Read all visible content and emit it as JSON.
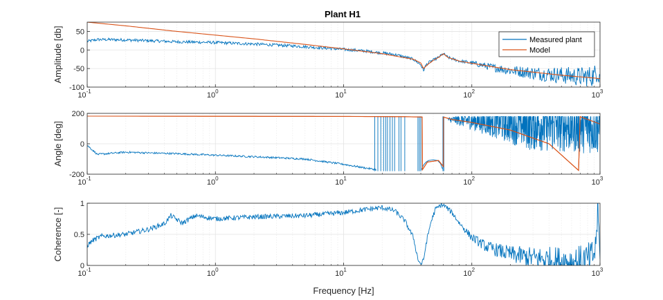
{
  "figure": {
    "title": "Plant H1"
  },
  "colors": {
    "measured": "#0072BD",
    "model": "#D95319",
    "grid": "#e3e3e3",
    "minor_grid": "#ececec",
    "axis": "#262626"
  },
  "chart_data": [
    {
      "type": "line",
      "title": "Plant H1",
      "xlabel": "",
      "ylabel": "Amplitude [db]",
      "xscale": "log",
      "xlim": [
        0.1,
        1000
      ],
      "ylim": [
        -100,
        75
      ],
      "yticks": [
        -100,
        -50,
        0,
        50
      ],
      "xticks": [
        {
          "base": "10",
          "exp": "-1"
        },
        {
          "base": "10",
          "exp": "0"
        },
        {
          "base": "10",
          "exp": "1"
        },
        {
          "base": "10",
          "exp": "2"
        },
        {
          "base": "10",
          "exp": "3"
        }
      ],
      "grid": true,
      "legend": {
        "placement": "top-right",
        "entries": [
          "Measured plant",
          "Model"
        ]
      },
      "series": [
        {
          "name": "Measured plant",
          "color": "#0072BD",
          "noise": 4,
          "x": [
            0.1,
            0.12,
            0.15,
            0.2,
            0.3,
            0.5,
            1,
            2,
            4,
            8,
            15,
            25,
            35,
            40,
            42,
            44,
            47,
            55,
            60,
            65,
            80,
            100,
            150,
            200,
            300,
            500,
            700,
            900,
            950,
            1000
          ],
          "y": [
            23,
            28,
            28,
            27,
            25,
            22,
            20,
            16,
            11,
            4,
            -3,
            -12,
            -25,
            -40,
            -55,
            -40,
            -32,
            -20,
            -10,
            -20,
            -30,
            -35,
            -48,
            -55,
            -62,
            -68,
            -72,
            -70,
            -55,
            -70
          ]
        },
        {
          "name": "Model",
          "color": "#D95319",
          "noise": 0,
          "x": [
            0.1,
            0.2,
            0.5,
            1,
            2,
            5,
            10,
            20,
            35,
            40,
            42,
            45,
            50,
            55,
            60,
            65,
            80,
            100,
            200,
            500,
            1000
          ],
          "y": [
            75,
            65,
            50,
            40,
            30,
            15,
            3,
            -10,
            -25,
            -35,
            -50,
            -40,
            -28,
            -20,
            -10,
            -20,
            -30,
            -36,
            -53,
            -68,
            -77
          ]
        }
      ]
    },
    {
      "type": "line",
      "xlabel": "",
      "ylabel": "Angle [deg]",
      "xscale": "log",
      "xlim": [
        0.1,
        1000
      ],
      "ylim": [
        -200,
        200
      ],
      "yticks": [
        -200,
        0,
        200
      ],
      "xticks": [
        {
          "base": "10",
          "exp": "-1"
        },
        {
          "base": "10",
          "exp": "0"
        },
        {
          "base": "10",
          "exp": "1"
        },
        {
          "base": "10",
          "exp": "2"
        },
        {
          "base": "10",
          "exp": "3"
        }
      ],
      "grid": true,
      "series": [
        {
          "name": "Measured plant",
          "color": "#0072BD",
          "noise": 6,
          "x": [
            0.1,
            0.12,
            0.2,
            0.3,
            0.5,
            1,
            2,
            5,
            10,
            15,
            18
          ],
          "y": [
            -10,
            -70,
            -55,
            -60,
            -65,
            -75,
            -85,
            -100,
            -135,
            -160,
            -170
          ]
        },
        {
          "name": "Measured plant",
          "color": "#0072BD",
          "noise": 0,
          "x": [
            40.5,
            42,
            44,
            46,
            50,
            54,
            57,
            59
          ],
          "y": [
            -170,
            -140,
            -120,
            -110,
            -105,
            -110,
            -130,
            -165
          ]
        },
        {
          "name": "Model",
          "color": "#D95319",
          "noise": 0,
          "x": [
            0.1,
            1,
            10,
            30,
            41,
            41.2,
            45,
            55,
            60,
            60.2,
            70,
            100,
            200,
            400,
            650,
            680,
            700,
            1000
          ],
          "y": [
            182,
            181,
            180,
            178,
            176,
            -170,
            -120,
            -110,
            -150,
            175,
            160,
            140,
            90,
            0,
            -160,
            -175,
            178,
            130
          ]
        }
      ]
    },
    {
      "type": "line",
      "xlabel": "Frequency [Hz]",
      "ylabel": "Coherence [-]",
      "xscale": "log",
      "xlim": [
        0.1,
        1000
      ],
      "ylim": [
        0,
        1
      ],
      "yticks": [
        0,
        0.5,
        1
      ],
      "xticks": [
        {
          "base": "10",
          "exp": "-1"
        },
        {
          "base": "10",
          "exp": "0"
        },
        {
          "base": "10",
          "exp": "1"
        },
        {
          "base": "10",
          "exp": "2"
        },
        {
          "base": "10",
          "exp": "3"
        }
      ],
      "grid": true,
      "series": [
        {
          "name": "Measured plant",
          "color": "#0072BD",
          "noise": 0.04,
          "x": [
            0.1,
            0.11,
            0.13,
            0.2,
            0.3,
            0.4,
            0.45,
            0.55,
            0.7,
            1,
            2,
            5,
            10,
            15,
            20,
            25,
            30,
            35,
            38,
            40,
            42,
            44,
            48,
            52,
            58,
            62,
            70,
            80,
            100,
            130,
            200,
            300,
            500,
            700,
            850,
            920,
            960,
            1000
          ],
          "y": [
            0.32,
            0.4,
            0.47,
            0.5,
            0.58,
            0.67,
            0.8,
            0.68,
            0.8,
            0.75,
            0.78,
            0.8,
            0.85,
            0.9,
            0.93,
            0.88,
            0.72,
            0.45,
            0.1,
            0.02,
            0.08,
            0.35,
            0.7,
            0.9,
            0.98,
            0.95,
            0.85,
            0.68,
            0.45,
            0.3,
            0.18,
            0.12,
            0.08,
            0.06,
            0.1,
            0.25,
            0.9,
            0.1
          ]
        }
      ]
    }
  ]
}
